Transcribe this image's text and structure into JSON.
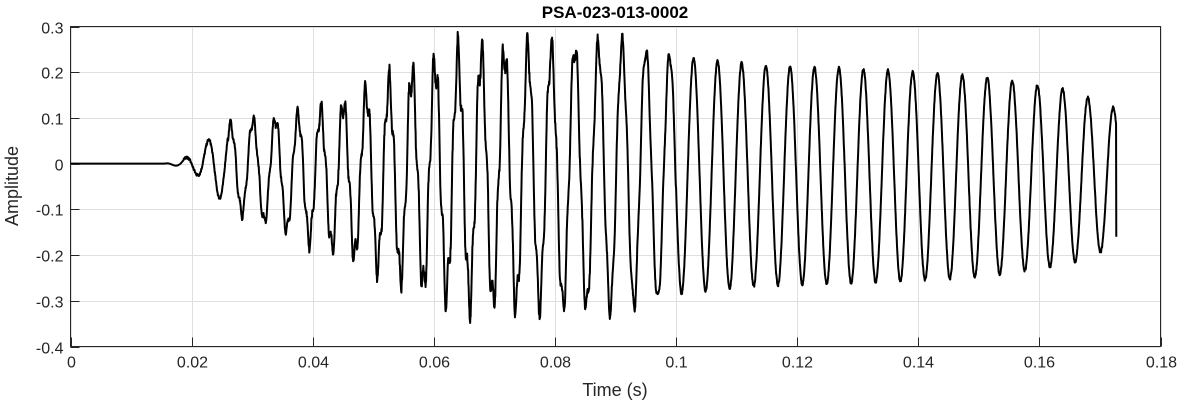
{
  "chart_data": {
    "type": "line",
    "title": "PSA-023-013-0002",
    "xlabel": "Time (s)",
    "ylabel": "Amplitude",
    "xlim": [
      0,
      0.18
    ],
    "ylim": [
      -0.4,
      0.3
    ],
    "grid": true,
    "x_ticks": [
      0,
      0.02,
      0.04,
      0.06,
      0.08,
      0.1,
      0.12,
      0.14,
      0.16,
      0.18
    ],
    "x_tick_labels": [
      "0",
      "0.02",
      "0.04",
      "0.06",
      "0.08",
      "0.1",
      "0.12",
      "0.14",
      "0.16",
      "0.18"
    ],
    "y_ticks": [
      -0.4,
      -0.3,
      -0.2,
      -0.1,
      0,
      0.1,
      0.2,
      0.3
    ],
    "y_tick_labels": [
      "-0.4",
      "-0.3",
      "-0.2",
      "-0.1",
      "0",
      "0.1",
      "0.2",
      "0.3"
    ],
    "series": [
      {
        "color": "#000000",
        "x_start": 0,
        "x_end": 0.1727,
        "envelope": [
          {
            "t": 0,
            "a": 0
          },
          {
            "t": 0.0155,
            "a": 0
          },
          {
            "t": 0.018,
            "a": 0.006
          },
          {
            "t": 0.021,
            "a": 0.025
          },
          {
            "t": 0.024,
            "a": 0.07
          },
          {
            "t": 0.028,
            "a": 0.1
          },
          {
            "t": 0.035,
            "a": 0.12
          },
          {
            "t": 0.045,
            "a": 0.16
          },
          {
            "t": 0.055,
            "a": 0.22
          },
          {
            "t": 0.065,
            "a": 0.27
          },
          {
            "t": 0.08,
            "a": 0.28
          },
          {
            "t": 0.09,
            "a": 0.29
          },
          {
            "t": 0.1,
            "a": 0.26
          },
          {
            "t": 0.115,
            "a": 0.24
          },
          {
            "t": 0.13,
            "a": 0.235
          },
          {
            "t": 0.15,
            "a": 0.22
          },
          {
            "t": 0.165,
            "a": 0.19
          },
          {
            "t": 0.1727,
            "a": 0.15
          }
        ],
        "offset": [
          {
            "t": 0,
            "o": 0
          },
          {
            "t": 0.024,
            "o": 0
          },
          {
            "t": 0.04,
            "o": -0.03
          },
          {
            "t": 0.07,
            "o": -0.03
          },
          {
            "t": 0.1,
            "o": -0.025
          },
          {
            "t": 0.17,
            "o": -0.03
          }
        ],
        "period": 0.0036,
        "period_end": 0.0042,
        "noise_until": 0.1,
        "final_value": -0.16
      }
    ]
  }
}
